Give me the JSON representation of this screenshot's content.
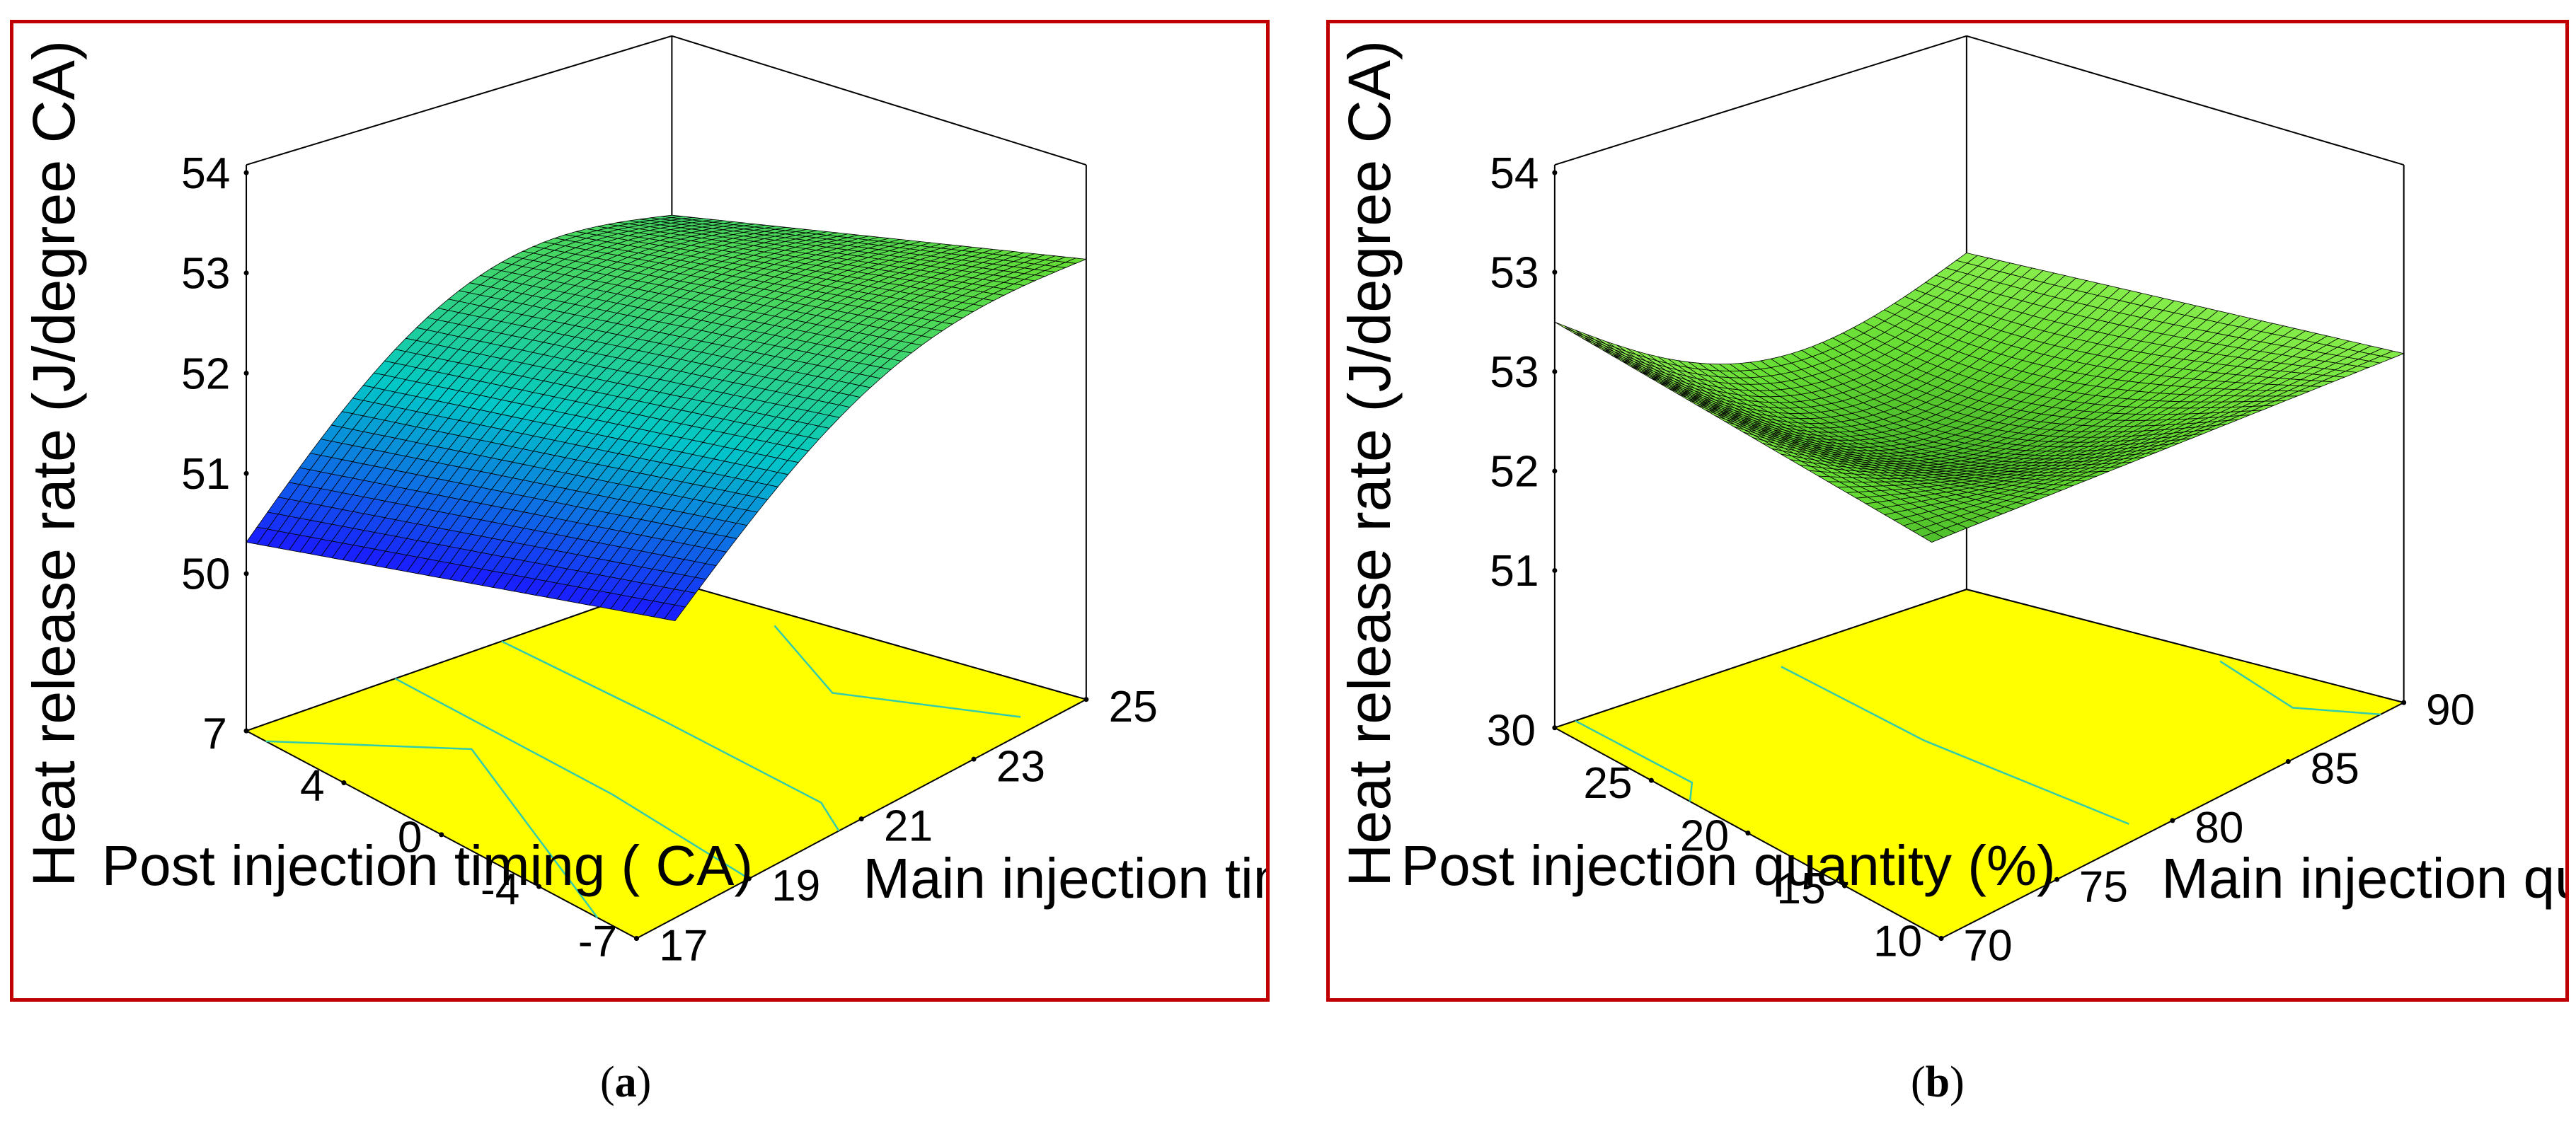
{
  "figure": {
    "panel_labels": [
      {
        "open": "(",
        "letter": "a",
        "close": ")"
      },
      {
        "open": "(",
        "letter": "b",
        "close": ")"
      }
    ],
    "colors": {
      "frame_border": "#c00000",
      "contour_floor": "#ffff00",
      "contour_lines": "#33ccaa",
      "surface_low": "#1a1aff",
      "surface_mid": "#00c8c8",
      "surface_high": "#66dd33",
      "mesh_lines": "#000000"
    }
  },
  "chart_data": [
    {
      "type": "surface3d",
      "zlabel": "Heat release rate (J/degree CA)",
      "xlabel": "Post injection timing ( CA)",
      "ylabel": "Main injection timing (CA)",
      "x_ticks": [
        "7",
        "4",
        "0",
        "-4",
        "-7"
      ],
      "y_ticks": [
        "17",
        "19",
        "21",
        "23",
        "25"
      ],
      "z_ticks": [
        "50",
        "51",
        "52",
        "53",
        "54"
      ],
      "xlim": [
        -7,
        7
      ],
      "ylim": [
        17,
        25
      ],
      "zlim": [
        50,
        54
      ],
      "corner_values": [
        {
          "post_timing": 7,
          "main_timing": 17,
          "heat_release_rate": 50.0
        },
        {
          "post_timing": 7,
          "main_timing": 25,
          "heat_release_rate": 53.2
        },
        {
          "post_timing": -7,
          "main_timing": 17,
          "heat_release_rate": 50.0
        },
        {
          "post_timing": -7,
          "main_timing": 25,
          "heat_release_rate": 54.0
        }
      ],
      "colormap": "blue-cyan-green"
    },
    {
      "type": "surface3d",
      "zlabel": "Heat release rate (J/degree CA)",
      "xlabel": "Post injection quantity (%)",
      "ylabel": "Main injection quantity (%)",
      "x_ticks": [
        "30",
        "25",
        "20",
        "15",
        "10"
      ],
      "y_ticks": [
        "70",
        "75",
        "80",
        "85",
        "90"
      ],
      "z_ticks": [
        "51",
        "52",
        "53",
        "53",
        "54"
      ],
      "xlim": [
        10,
        30
      ],
      "ylim": [
        70,
        90
      ],
      "corner_values": [
        {
          "post_quantity": 30,
          "main_quantity": 70,
          "heat_release_rate": 54.0
        },
        {
          "post_quantity": 30,
          "main_quantity": 90,
          "heat_release_rate": 53.1
        },
        {
          "post_quantity": 10,
          "main_quantity": 70,
          "heat_release_rate": 51.7
        },
        {
          "post_quantity": 10,
          "main_quantity": 90,
          "heat_release_rate": 53.0
        }
      ],
      "colormap": "green"
    }
  ]
}
